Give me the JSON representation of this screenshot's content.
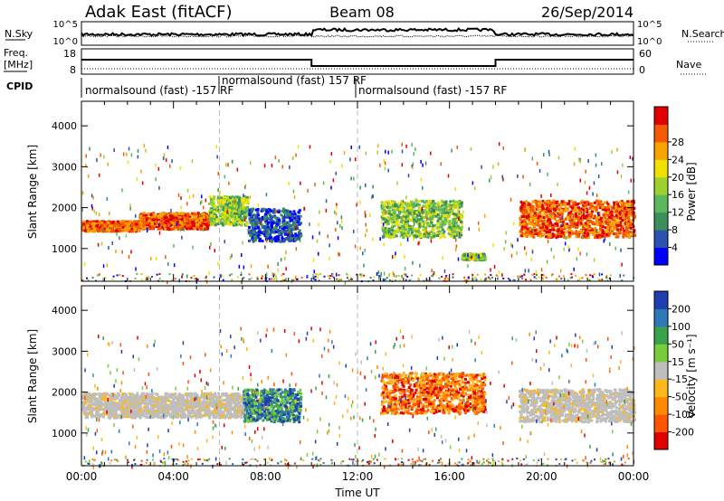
{
  "header": {
    "station": "Adak East (fitACF)",
    "beam": "Beam 08",
    "date": "26/Sep/2014"
  },
  "status_panels": {
    "nsky_label": "N.Sky",
    "nsearch_label": "N.Search",
    "freq_label_1": "Freq.",
    "freq_label_2": "[MHz]",
    "nave_label": "Nave",
    "cpid_label": "CPID",
    "noise_ticks_left": [
      "10^5",
      "10^0"
    ],
    "noise_ticks_right": [
      "10^5",
      "10^0"
    ],
    "freq_ticks": [
      "18",
      "8"
    ],
    "nave_ticks": [
      "60",
      "0"
    ],
    "cpid_segments": [
      {
        "text": "normalsound (fast) -157 RF",
        "start_h": 0,
        "end_h": 6
      },
      {
        "text": "normalsound (fast) 157 RF",
        "start_h": 6,
        "end_h": 12
      },
      {
        "text": "normalsound (fast) -157 RF",
        "start_h": 12,
        "end_h": 24
      }
    ],
    "freq_series_mhz": [
      {
        "t": 0,
        "f": 14
      },
      {
        "t": 10,
        "f": 14
      },
      {
        "t": 10,
        "f": 10.5
      },
      {
        "t": 18,
        "f": 10.5
      },
      {
        "t": 18,
        "f": 14
      },
      {
        "t": 24,
        "f": 14
      }
    ]
  },
  "chart_data": [
    {
      "type": "heatmap",
      "name": "power",
      "xlabel": "",
      "ylabel": "Slant Range [km]",
      "xlim": [
        0,
        24
      ],
      "ylim": [
        200,
        4600
      ],
      "yticks": [
        "1000",
        "2000",
        "3000",
        "4000"
      ],
      "colorbar": {
        "label": "Power [dB]",
        "ticks": [
          "4",
          "8",
          "12",
          "16",
          "20",
          "24",
          "28"
        ],
        "colors": [
          "#0000ff",
          "#2a52ae",
          "#3a8f5a",
          "#5cb85c",
          "#9dd12e",
          "#f0e000",
          "#f7a300",
          "#f55a00",
          "#e00000"
        ]
      },
      "features": [
        {
          "t0": 0,
          "t1": 2.5,
          "r0": 1450,
          "r1": 1700,
          "level": "high"
        },
        {
          "t0": 2.5,
          "t1": 5.5,
          "r0": 1500,
          "r1": 1900,
          "level": "high"
        },
        {
          "t0": 5.5,
          "t1": 7.2,
          "r0": 1600,
          "r1": 2300,
          "level": "mid"
        },
        {
          "t0": 7.2,
          "t1": 9.5,
          "r0": 1200,
          "r1": 2000,
          "level": "low"
        },
        {
          "t0": 13,
          "t1": 16.5,
          "r0": 1300,
          "r1": 2200,
          "level": "mid"
        },
        {
          "t0": 16.5,
          "t1": 17.5,
          "r0": 750,
          "r1": 900,
          "level": "mid"
        },
        {
          "t0": 19,
          "t1": 24,
          "r0": 1300,
          "r1": 2200,
          "level": "high"
        }
      ]
    },
    {
      "type": "heatmap",
      "name": "velocity",
      "xlabel": "Time UT",
      "ylabel": "Slant Range [km]",
      "xlim": [
        0,
        24
      ],
      "ylim": [
        200,
        4600
      ],
      "xticks": [
        "00:00",
        "04:00",
        "08:00",
        "12:00",
        "16:00",
        "20:00",
        "00:00"
      ],
      "yticks": [
        "1000",
        "2000",
        "3000",
        "4000"
      ],
      "colorbar": {
        "label": "Velocity [m s⁻¹]",
        "ticks": [
          "200",
          "100",
          "50",
          "15",
          "-15",
          "-50",
          "-100",
          "-200"
        ],
        "colors": [
          "#1f3fae",
          "#2f79b8",
          "#3aa24a",
          "#79cc3c",
          "#bebebe",
          "#ffb81c",
          "#ff8a00",
          "#ff5500",
          "#e00000"
        ]
      },
      "features": [
        {
          "t0": 0,
          "t1": 7,
          "r0": 1400,
          "r1": 2000,
          "velocity": "ground"
        },
        {
          "t0": 7,
          "t1": 9.5,
          "r0": 1300,
          "r1": 2100,
          "velocity": "positive"
        },
        {
          "t0": 13,
          "t1": 17.5,
          "r0": 1500,
          "r1": 2500,
          "velocity": "negative"
        },
        {
          "t0": 19,
          "t1": 24,
          "r0": 1300,
          "r1": 2100,
          "velocity": "ground"
        }
      ]
    }
  ]
}
